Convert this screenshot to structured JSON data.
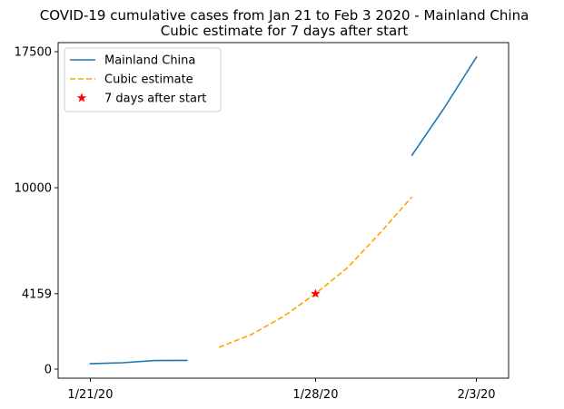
{
  "chart_data": {
    "type": "line",
    "title": "COVID-19 cumulative cases from Jan 21 to Feb 3 2020 - Mainland China",
    "subtitle": "Cubic estimate for 7 days after start",
    "xlabel": "",
    "ylabel": "",
    "x_ticks": [
      "1/21/20",
      "1/28/20",
      "2/3/20"
    ],
    "y_ticks": [
      0,
      4159,
      10000,
      17500
    ],
    "xlim": [
      "2020-01-20",
      "2020-02-03"
    ],
    "ylim": [
      -500,
      18000
    ],
    "grid": false,
    "legend_position": "top-left",
    "series": [
      {
        "name": "Mainland China",
        "style": "solid",
        "color": "#1f77b4",
        "segments": [
          [
            {
              "x": "2020-01-21",
              "y": 300
            },
            {
              "x": "2020-01-22",
              "y": 350
            },
            {
              "x": "2020-01-23",
              "y": 470
            },
            {
              "x": "2020-01-24",
              "y": 480
            }
          ],
          [
            {
              "x": "2020-01-31",
              "y": 11800
            },
            {
              "x": "2020-02-01",
              "y": 14400
            },
            {
              "x": "2020-02-02",
              "y": 17200
            }
          ]
        ]
      },
      {
        "name": "Cubic estimate",
        "style": "dashed",
        "color": "#ffa500",
        "points": [
          {
            "x": "2020-01-25",
            "y": 1200
          },
          {
            "x": "2020-01-26",
            "y": 1900
          },
          {
            "x": "2020-01-27",
            "y": 2900
          },
          {
            "x": "2020-01-28",
            "y": 4159
          },
          {
            "x": "2020-01-29",
            "y": 5600
          },
          {
            "x": "2020-01-30",
            "y": 7500
          },
          {
            "x": "2020-01-31",
            "y": 9500
          }
        ]
      },
      {
        "name": "7 days after start",
        "style": "marker-star",
        "color": "#ff0000",
        "points": [
          {
            "x": "2020-01-28",
            "y": 4159
          }
        ]
      }
    ]
  }
}
